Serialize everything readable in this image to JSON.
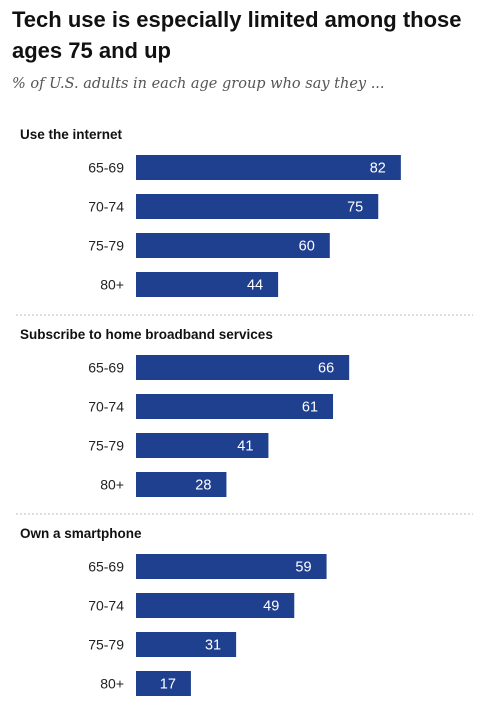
{
  "title": "Tech use is especially limited among those ages 75 and up",
  "subtitle": "% of U.S. adults in each age group who say they ...",
  "colors": {
    "bar": "#1f3f8f"
  },
  "chart_data": {
    "type": "bar",
    "orientation": "horizontal",
    "categories": [
      "65-69",
      "70-74",
      "75-79",
      "80+"
    ],
    "panels": [
      {
        "title": "Use the internet",
        "values": [
          82,
          75,
          60,
          44
        ]
      },
      {
        "title": "Subscribe to home broadband services",
        "values": [
          66,
          61,
          41,
          28
        ]
      },
      {
        "title": "Own a smartphone",
        "values": [
          59,
          49,
          31,
          17
        ]
      }
    ],
    "xlim": [
      0,
      100
    ],
    "grid": false,
    "legend": "none"
  }
}
